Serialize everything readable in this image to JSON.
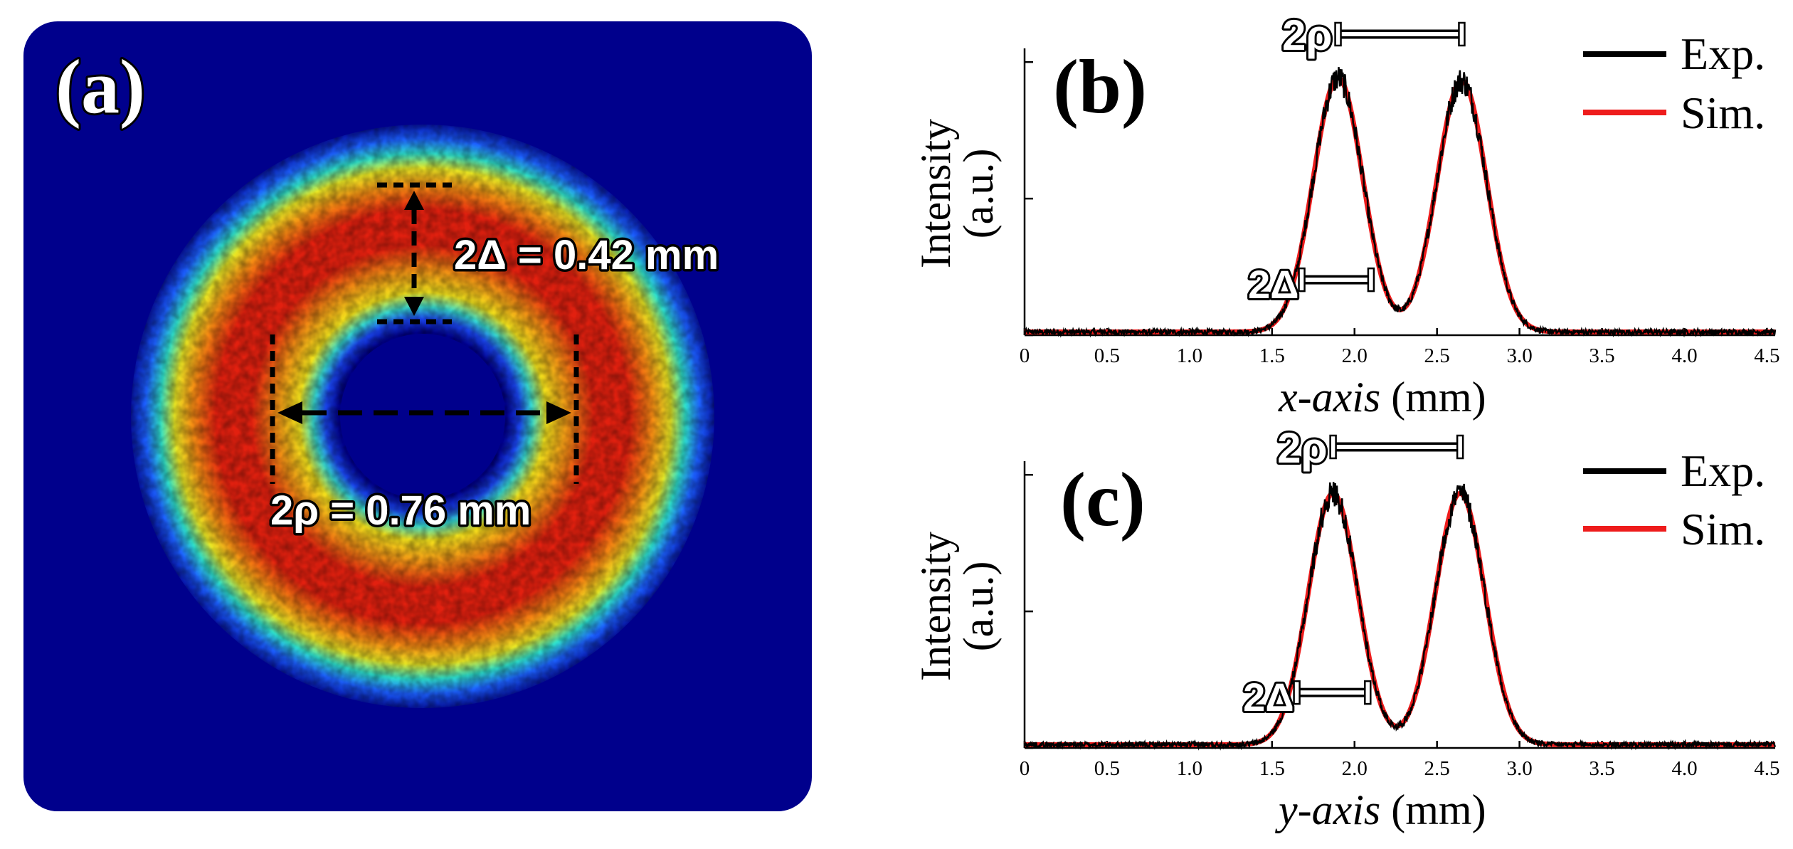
{
  "panel_a": {
    "label": "(a)",
    "delta_annotation": "2Δ = 0.42 mm",
    "rho_annotation": "2ρ = 0.76 mm",
    "colors": {
      "background": "#00008c",
      "ring_hot": "#e0190f",
      "ring_mid": "#f7e019",
      "ring_cool": "#2ce0c8",
      "edge": "#1860ff"
    }
  },
  "chart_data": [
    {
      "type": "line",
      "panel": "(b)",
      "xlabel_italic": "x-axis",
      "xlabel_unit": " (mm)",
      "ylabel_line1": "Intensity",
      "ylabel_line2": "(a.u.)",
      "xlim": [
        0,
        4.55
      ],
      "ylim": [
        0,
        1.05
      ],
      "x_ticks": [
        "0",
        "0.5",
        "1.0",
        "1.5",
        "2.0",
        "2.5",
        "3.0",
        "3.5",
        "4.0",
        "4.5"
      ],
      "x_tick_values": [
        0,
        0.5,
        1.0,
        1.5,
        2.0,
        2.5,
        3.0,
        3.5,
        4.0,
        4.5
      ],
      "y_tick_values": [
        0,
        0.5,
        1.0
      ],
      "peaks": [
        {
          "center": 1.9,
          "sigma": 0.15,
          "height": 0.93
        },
        {
          "center": 2.65,
          "sigma": 0.15,
          "height": 0.92
        }
      ],
      "series": [
        {
          "name": "Exp.",
          "color": "#000000"
        },
        {
          "name": "Sim.",
          "color": "#ee1c1c"
        }
      ],
      "annotations": {
        "rho_label": "2ρ",
        "delta_label": "2Δ",
        "rho_span": [
          1.9,
          2.65
        ],
        "delta_span": [
          1.68,
          2.1
        ],
        "delta_level": 0.13
      }
    },
    {
      "type": "line",
      "panel": "(c)",
      "xlabel_italic": "y-axis",
      "xlabel_unit": " (mm)",
      "ylabel_line1": "Intensity",
      "ylabel_line2": "(a.u.)",
      "xlim": [
        0,
        4.55
      ],
      "ylim": [
        0,
        1.05
      ],
      "x_ticks": [
        "0",
        "0.5",
        "1.0",
        "1.5",
        "2.0",
        "2.5",
        "3.0",
        "3.5",
        "4.0",
        "4.5"
      ],
      "x_tick_values": [
        0,
        0.5,
        1.0,
        1.5,
        2.0,
        2.5,
        3.0,
        3.5,
        4.0,
        4.5
      ],
      "y_tick_values": [
        0,
        0.5,
        1.0
      ],
      "peaks": [
        {
          "center": 1.87,
          "sigma": 0.15,
          "height": 0.92
        },
        {
          "center": 2.64,
          "sigma": 0.15,
          "height": 0.92
        }
      ],
      "series": [
        {
          "name": "Exp.",
          "color": "#000000"
        },
        {
          "name": "Sim.",
          "color": "#ee1c1c"
        }
      ],
      "annotations": {
        "rho_label": "2ρ",
        "delta_label": "2Δ",
        "rho_span": [
          1.87,
          2.64
        ],
        "delta_span": [
          1.65,
          2.08
        ],
        "delta_level": 0.13
      }
    }
  ]
}
